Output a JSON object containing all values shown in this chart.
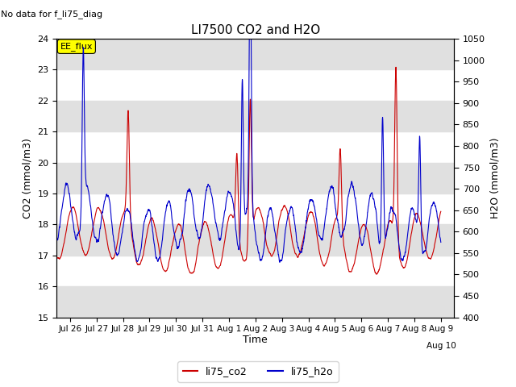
{
  "title": "LI7500 CO2 and H2O",
  "subtitle": "No data for f_li75_diag",
  "xlabel": "Time",
  "ylabel_left": "CO2 (mmol/m3)",
  "ylabel_right": "H2O (mmol/m3)",
  "ylim_left": [
    15.0,
    24.0
  ],
  "ylim_right": [
    400,
    1050
  ],
  "yticks_left": [
    15.0,
    16.0,
    17.0,
    18.0,
    19.0,
    20.0,
    21.0,
    22.0,
    23.0,
    24.0
  ],
  "yticks_right": [
    400,
    450,
    500,
    550,
    600,
    650,
    700,
    750,
    800,
    850,
    900,
    950,
    1000,
    1050
  ],
  "xtick_labels": [
    "Jul 26",
    "Jul 27",
    "Jul 28",
    "Jul 29",
    "Jul 30",
    "Jul 31",
    "Aug 1",
    "Aug 2",
    "Aug 3",
    "Aug 4",
    "Aug 5",
    "Aug 6",
    "Aug 7",
    "Aug 8",
    "Aug 9"
  ],
  "xtick_last": "Aug 10",
  "color_co2": "#cc0000",
  "color_h2o": "#0000cc",
  "legend_label_co2": "li75_co2",
  "legend_label_h2o": "li75_h2o",
  "ee_flux_box_color": "#ffff00",
  "ee_flux_text": "EE_flux",
  "background_band_color": "#e0e0e0",
  "n_points": 2000,
  "seed": 17
}
